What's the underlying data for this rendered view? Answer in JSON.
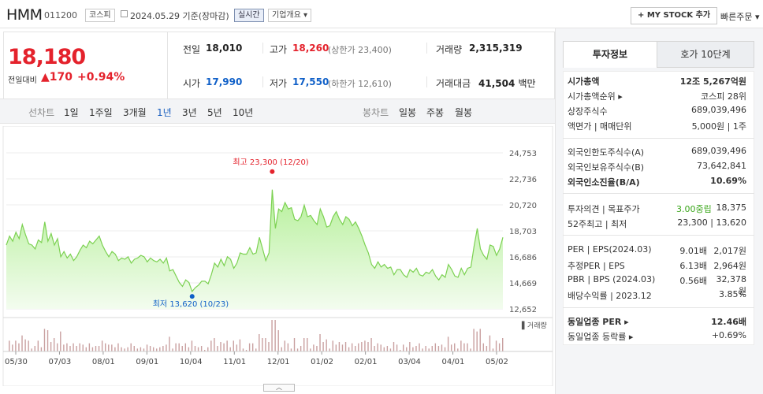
{
  "header": {
    "name": "HMM",
    "code": "011200",
    "market": "코스피",
    "date": "2024.05.29",
    "date_suffix": "기준(장마감)",
    "live": "실시간",
    "company_info": "기업개요 ▾",
    "my_stock": "+ MY STOCK 추가",
    "quick_order": "빠른주문 ▾"
  },
  "quote": {
    "price": "18,180",
    "change_label": "전일대비",
    "change": "▲170",
    "change_pct": "+0.94%",
    "prev_label": "전일",
    "prev": "18,010",
    "high_label": "고가",
    "high": "18,260",
    "upper_limit": "(상한가 23,400)",
    "volume_label": "거래량",
    "volume": "2,315,319",
    "open_label": "시가",
    "open": "17,990",
    "low_label": "저가",
    "low": "17,550",
    "lower_limit": "(하한가 12,610)",
    "amount_label": "거래대금",
    "amount": "41,504",
    "amount_unit": "백만"
  },
  "tabs": {
    "line": "선차트",
    "periods": [
      "1일",
      "1주일",
      "3개월",
      "1년",
      "3년",
      "5년",
      "10년"
    ],
    "active_period": "1년",
    "candle": "봉차트",
    "candle_periods": [
      "일봉",
      "주봉",
      "월봉"
    ]
  },
  "chart_data": {
    "type": "area",
    "yticks": [
      "24,753",
      "22,736",
      "20,720",
      "18,703",
      "16,686",
      "14,669",
      "12,652"
    ],
    "ylim": [
      12652,
      24753
    ],
    "xticks": [
      "05/30",
      "07/03",
      "08/01",
      "09/01",
      "10/04",
      "11/01",
      "12/01",
      "01/02",
      "02/01",
      "03/04",
      "04/01",
      "05/02"
    ],
    "high_annotation": "최고 23,300 (12/20)",
    "low_annotation": "최저 13,620 (10/23)",
    "volume_label": "거래량",
    "series": [
      {
        "values": [
          17600,
          18300,
          17900,
          18600,
          18100,
          19200,
          18400,
          17700,
          17600,
          17300,
          18000,
          17800,
          19400,
          17900,
          18500,
          17600,
          18100,
          16700,
          17100,
          16600,
          16900,
          16400,
          16700,
          17200,
          17600,
          17400,
          17900,
          17700,
          18000,
          18300,
          17600,
          17100,
          16700,
          17100,
          16900,
          16400,
          16600,
          16500,
          16700,
          16200,
          16500,
          16600,
          16800,
          16700,
          16300,
          16600,
          16400,
          16300,
          16500,
          16200,
          16600,
          15600,
          15700,
          15200,
          14700,
          14400,
          14900,
          14700,
          14000,
          14300,
          14500,
          14800,
          14800,
          14600,
          15300,
          16200,
          15900,
          16500,
          16000,
          16700,
          16500,
          15800,
          16200,
          17000,
          16900,
          16900,
          17400,
          16900,
          17000,
          18200,
          17300,
          16400,
          17000,
          21900,
          18900,
          20400,
          20200,
          20900,
          20400,
          20500,
          19600,
          19500,
          19800,
          20700,
          19800,
          19900,
          19500,
          19200,
          20400,
          19800,
          19000,
          19100,
          19800,
          20200,
          19600,
          19200,
          19800,
          19600,
          19100,
          19400,
          18900,
          18300,
          17600,
          17000,
          16100,
          15800,
          16300,
          15900,
          16100,
          15800,
          15900,
          15300,
          15700,
          15700,
          15300,
          15100,
          15700,
          15500,
          15800,
          15300,
          15200,
          15500,
          15400,
          15700,
          15200,
          14900,
          15300,
          15100,
          16100,
          15700,
          15200,
          15100,
          15800,
          15300,
          15800,
          15900,
          17500,
          18900,
          17300,
          16800,
          16500,
          17600,
          17500,
          16800,
          17300,
          18200
        ]
      }
    ]
  },
  "right": {
    "tab_active": "투자정보",
    "tab_other": "호가 10단계",
    "rows1": [
      {
        "label": "시가총액",
        "value": "12조 5,267억원",
        "bold": true
      },
      {
        "label": "시가총액순위 ▸",
        "value": "코스피 28위"
      },
      {
        "label": "상장주식수",
        "value": "689,039,496"
      },
      {
        "label": "액면가 | 매매단위",
        "value": "5,000원 | 1주"
      }
    ],
    "rows2": [
      {
        "label": "외국인한도주식수(A)",
        "value": "689,039,496"
      },
      {
        "label": "외국인보유주식수(B)",
        "value": "73,642,841"
      },
      {
        "label": "외국인소진율(B/A)",
        "value": "10.69%",
        "bold": true
      }
    ],
    "opinion_label": "투자의견 | 목표주가",
    "opinion_value": "3.00중립",
    "target_price": "18,375",
    "range_label": "52주최고 | 최저",
    "range_value": "23,300 | 13,620",
    "per_rows": [
      {
        "label": "PER | EPS(2024.03)",
        "v1": "9.01배",
        "v2": "2,017원"
      },
      {
        "label": "추정PER | EPS",
        "v1": "6.13배",
        "v2": "2,964원"
      },
      {
        "label": "PBR | BPS (2024.03)",
        "v1": "0.56배",
        "v2": "32,378원"
      },
      {
        "label": "배당수익률 | 2023.12",
        "v1": "",
        "v2": "3.85%"
      }
    ],
    "sector_per_label": "동일업종 PER ▸",
    "sector_per_value": "12.46배",
    "sector_rate_label": "동일업종 등락률 ▸",
    "sector_rate_value": "+0.69%"
  }
}
